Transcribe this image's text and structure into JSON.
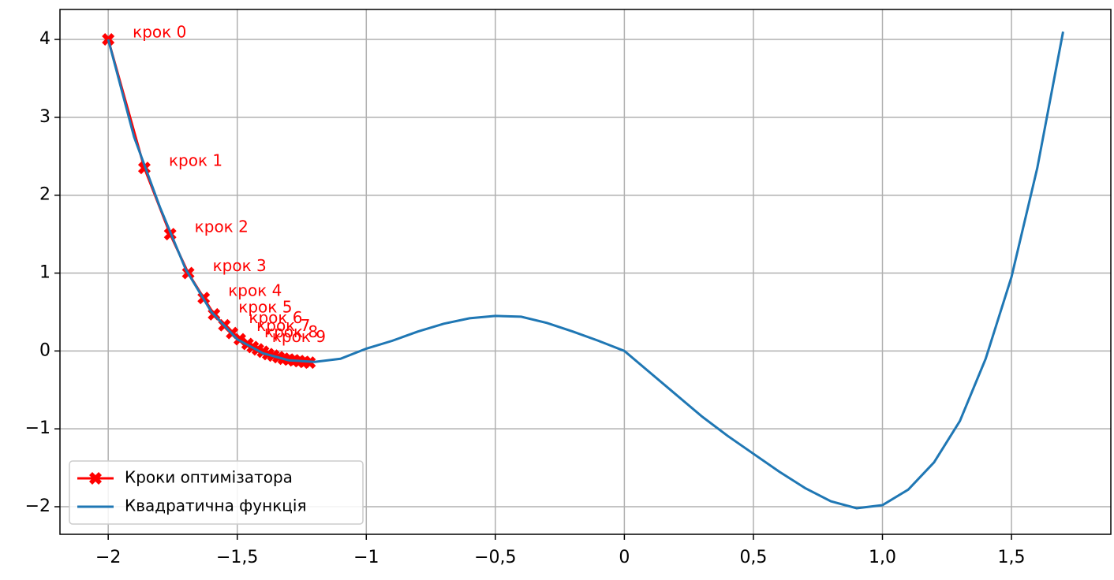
{
  "chart_data": {
    "type": "line",
    "xlim": [
      -2.187,
      1.885
    ],
    "ylim": [
      -2.354,
      4.385
    ],
    "xticks": [
      {
        "value": -2,
        "label": "−2"
      },
      {
        "value": -1.5,
        "label": "−1,5"
      },
      {
        "value": -1,
        "label": "−1"
      },
      {
        "value": -0.5,
        "label": "−0,5"
      },
      0,
      {
        "value": 0.5,
        "label": "0,5"
      },
      {
        "value": 1.0,
        "label": "1,0"
      },
      {
        "value": 1.5,
        "label": "1,5"
      }
    ],
    "yticks": [
      {
        "value": -2,
        "label": "−2"
      },
      {
        "value": -1,
        "label": "−1"
      },
      0,
      1,
      2,
      3,
      4
    ],
    "grid": true,
    "legend": "lower left",
    "series": [
      {
        "name": "Кроки оптимізатора",
        "color": "#ff0000",
        "marker": "X",
        "x": [
          -2,
          -1.86,
          -1.76,
          -1.69,
          -1.63,
          -1.59,
          -1.55,
          -1.52,
          -1.49,
          -1.46,
          -1.44,
          -1.42,
          -1.4,
          -1.38,
          -1.36,
          -1.34,
          -1.32,
          -1.3,
          -1.28,
          -1.26,
          -1.24,
          -1.22
        ],
        "values": [
          4.0,
          2.35,
          1.5,
          1.0,
          0.68,
          0.47,
          0.33,
          0.23,
          0.15,
          0.09,
          0.05,
          0.02,
          -0.01,
          -0.04,
          -0.06,
          -0.08,
          -0.1,
          -0.11,
          -0.12,
          -0.13,
          -0.14,
          -0.15
        ],
        "point_labels": [
          "крок 0",
          "крок 1",
          "крок 2",
          "крок 3",
          "крок 4",
          "крок 5",
          "крок 6",
          "крок 7",
          "крок 8",
          "крок 9",
          null,
          null,
          null,
          null,
          null,
          null,
          null,
          null,
          null,
          null,
          null,
          null
        ]
      },
      {
        "name": "Квадратична функція",
        "color": "#1f77b4",
        "x": [
          -2,
          -1.9,
          -1.8,
          -1.7,
          -1.6,
          -1.5,
          -1.4,
          -1.3,
          -1.2,
          -1.1,
          -1.0,
          -0.9,
          -0.8,
          -0.7,
          -0.6,
          -0.5,
          -0.4,
          -0.3,
          -0.2,
          -0.1,
          0,
          0.1,
          0.2,
          0.3,
          0.4,
          0.5,
          0.6,
          0.7,
          0.8,
          0.9,
          1.0,
          1.1,
          1.2,
          1.3,
          1.4,
          1.5,
          1.6,
          1.7
        ],
        "values": [
          4.0,
          2.75,
          1.85,
          1.05,
          0.5,
          0.15,
          -0.03,
          -0.12,
          -0.14,
          -0.1,
          0.03,
          0.13,
          0.25,
          0.35,
          0.42,
          0.45,
          0.44,
          0.36,
          0.25,
          0.13,
          0.0,
          -0.28,
          -0.56,
          -0.84,
          -1.09,
          -1.32,
          -1.55,
          -1.76,
          -1.93,
          -2.02,
          -1.98,
          -1.78,
          -1.43,
          -0.9,
          -0.1,
          0.95,
          2.35,
          4.1
        ]
      }
    ]
  }
}
